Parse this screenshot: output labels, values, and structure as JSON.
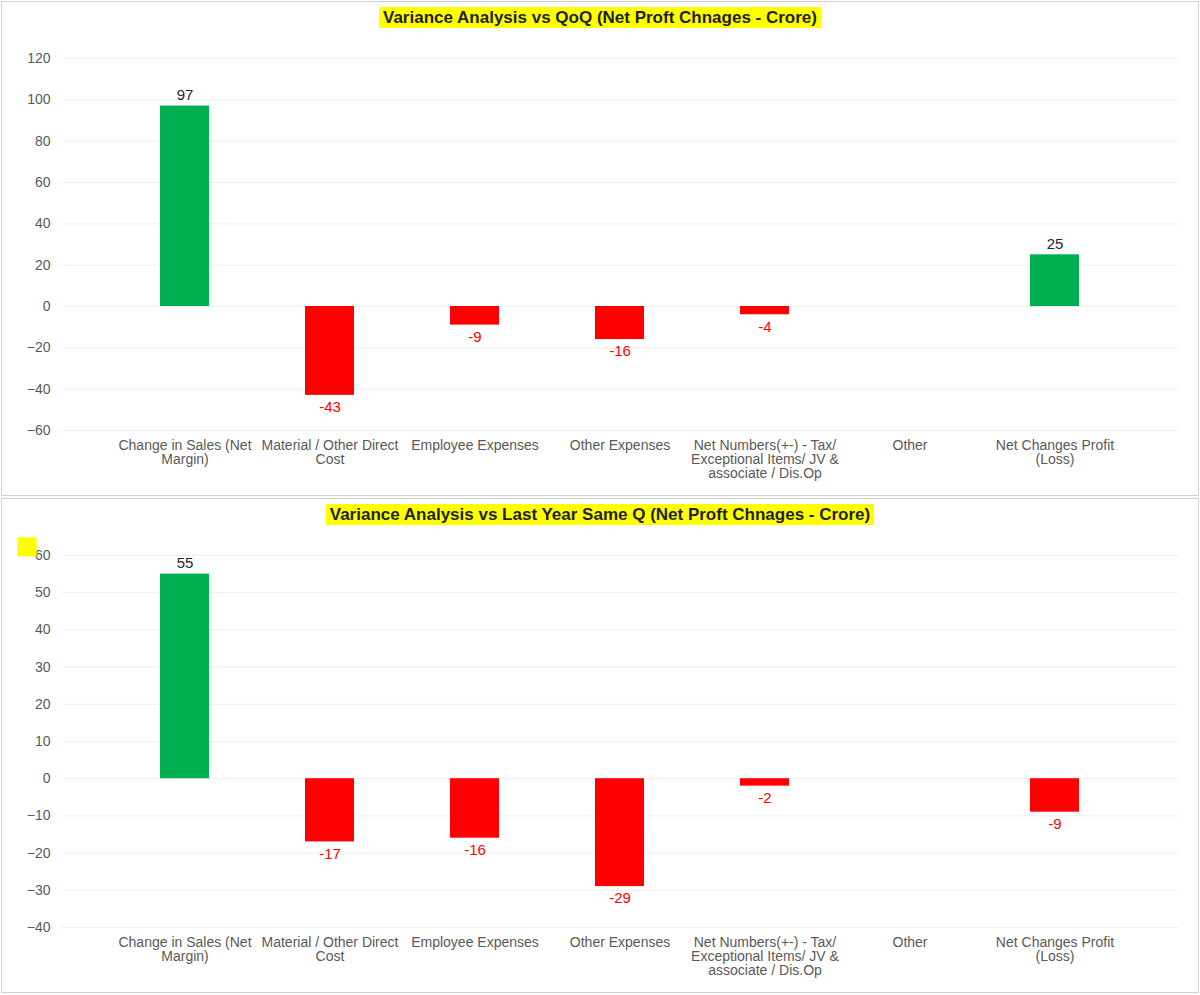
{
  "chart_data": [
    {
      "type": "bar",
      "title": "Variance Analysis vs QoQ (Net Proft Chnages - Crore)",
      "categories": [
        "Change in Sales (Net Margin)",
        "Material / Other Direct Cost",
        "Employee Expenses",
        "Other Expenses",
        "Net Numbers(+-) - Tax/ Exceptional Items/ JV & associate / Dis.Op",
        "Other",
        "Net Changes Profit (Loss)"
      ],
      "values": [
        97,
        -43,
        -9,
        -16,
        -4,
        null,
        25
      ],
      "colors": [
        "#00b050",
        "#ff0000",
        "#ff0000",
        "#ff0000",
        "#ff0000",
        null,
        "#00b050"
      ],
      "ylim": [
        -60,
        120
      ],
      "yticks": [
        -60,
        -40,
        -20,
        0,
        20,
        40,
        60,
        80,
        100,
        120
      ],
      "grid": true,
      "data_labels": true
    },
    {
      "type": "bar",
      "title": "Variance Analysis vs Last Year Same Q (Net Proft Chnages - Crore)",
      "categories": [
        "Change in Sales (Net Margin)",
        "Material / Other Direct Cost",
        "Employee Expenses",
        "Other Expenses",
        "Net Numbers(+-) - Tax/ Exceptional Items/ JV & associate / Dis.Op",
        "Other",
        "Net Changes Profit (Loss)"
      ],
      "values": [
        55,
        -17,
        -16,
        -29,
        -2,
        null,
        -9
      ],
      "colors": [
        "#00b050",
        "#ff0000",
        "#ff0000",
        "#ff0000",
        "#ff0000",
        null,
        "#ff0000"
      ],
      "ylim": [
        -40,
        60
      ],
      "yticks": [
        -40,
        -30,
        -20,
        -10,
        0,
        10,
        20,
        30,
        40,
        50,
        60
      ],
      "grid": true,
      "data_labels": true
    }
  ]
}
